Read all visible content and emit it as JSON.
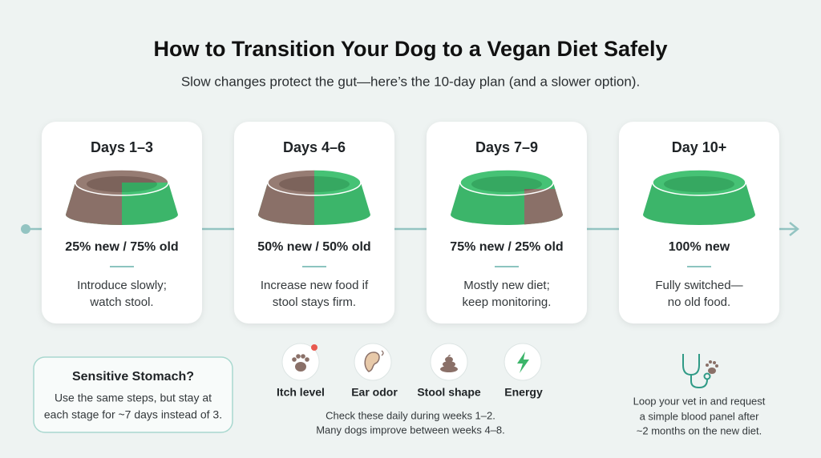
{
  "header": {
    "title": "How to Transition Your Dog to a Vegan Diet Safely",
    "subtitle": "Slow changes protect the gut—here’s the 10-day plan (and a slower option)."
  },
  "stages": [
    {
      "title": "Days 1–3",
      "ratio": "25% new / 75% old",
      "note_lines": [
        "Introduce slowly;",
        "watch stool."
      ]
    },
    {
      "title": "Days 4–6",
      "ratio": "50% new / 50% old",
      "note_lines": [
        "Increase new food if",
        "stool stays firm."
      ]
    },
    {
      "title": "Days 7–9",
      "ratio": "75% new / 25% old",
      "note_lines": [
        "Mostly new diet;",
        "keep monitoring."
      ]
    },
    {
      "title": "Day 10+",
      "ratio": "100% new",
      "note_lines": [
        "Fully switched—",
        "no old food."
      ]
    }
  ],
  "sensitive": {
    "title": "Sensitive Stomach?",
    "lines": [
      "Use the same steps, but stay at",
      "each stage for ~7 days instead of 3."
    ]
  },
  "monitor": {
    "items": [
      "Itch level",
      "Ear odor",
      "Stool shape",
      "Energy"
    ],
    "note_lines": [
      "Check these daily during weeks 1–2.",
      "Many dogs improve between weeks 4–8."
    ]
  },
  "vet": {
    "lines": [
      "Loop your vet in and request",
      "a simple blood panel after",
      "~2 months on the new diet."
    ]
  }
}
